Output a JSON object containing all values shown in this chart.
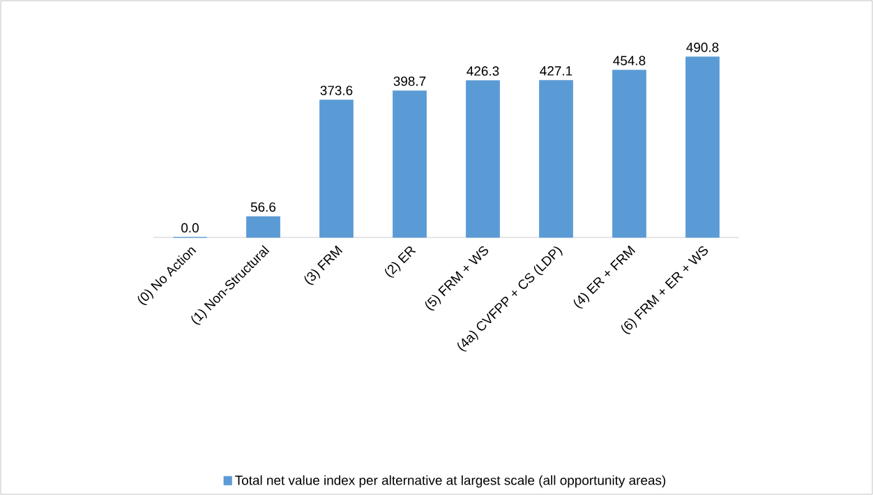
{
  "chart_data": {
    "type": "bar",
    "categories": [
      "(0) No Action",
      "(1) Non-Structural",
      "(3) FRM",
      "(2) ER",
      "(5) FRM + WS",
      "(4a) CVFPP + CS (LDP)",
      "(4) ER + FRM",
      "(6) FRM + ER + WS"
    ],
    "series": [
      {
        "name": "Total net value index per alternative at largest scale (all opportunity areas)",
        "color": "#5b9bd5",
        "values": [
          0.0,
          56.6,
          373.6,
          398.7,
          426.3,
          427.1,
          454.8,
          490.8
        ],
        "value_labels": [
          "0.0",
          "56.6",
          "373.6",
          "398.7",
          "426.3",
          "427.1",
          "454.8",
          "490.8"
        ]
      }
    ],
    "legend": "bottom"
  }
}
